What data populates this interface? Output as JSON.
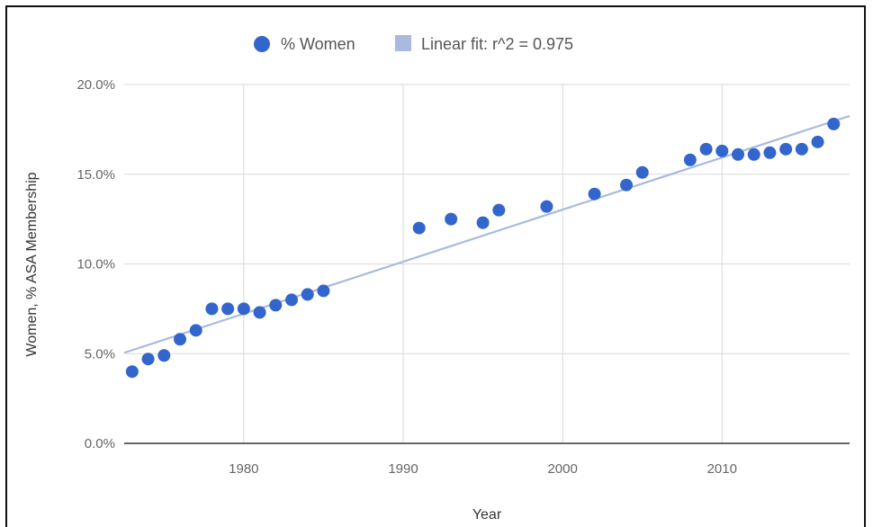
{
  "chart_data": {
    "type": "scatter",
    "title": "",
    "xlabel": "Year",
    "ylabel": "Women, % ASA Membership",
    "xlim": [
      1972.5,
      2018
    ],
    "ylim": [
      0,
      20
    ],
    "x_ticks": [
      1980,
      1990,
      2000,
      2010
    ],
    "x_tick_labels": [
      "1980",
      "1990",
      "2000",
      "2010"
    ],
    "y_ticks": [
      0,
      5,
      10,
      15,
      20
    ],
    "y_tick_labels": [
      "0.0%",
      "5.0%",
      "10.0%",
      "15.0%",
      "20.0%"
    ],
    "grid": true,
    "legend_position": "top",
    "series": [
      {
        "name": "% Women",
        "type": "scatter",
        "color": "#3366cc",
        "x": [
          1973,
          1974,
          1975,
          1976,
          1977,
          1978,
          1979,
          1980,
          1981,
          1982,
          1983,
          1984,
          1985,
          1991,
          1993,
          1995,
          1996,
          1999,
          2002,
          2004,
          2005,
          2008,
          2009,
          2010,
          2011,
          2012,
          2013,
          2014,
          2015,
          2016,
          2017
        ],
        "y": [
          4.0,
          4.7,
          4.9,
          5.8,
          6.3,
          7.5,
          7.5,
          7.5,
          7.3,
          7.7,
          8.0,
          8.3,
          8.5,
          12.0,
          12.5,
          12.3,
          13.0,
          13.2,
          13.9,
          14.4,
          15.1,
          15.8,
          16.4,
          16.3,
          16.1,
          16.1,
          16.2,
          16.4,
          16.4,
          16.8,
          17.8
        ]
      },
      {
        "name": "Linear fit: r^2 = 0.975",
        "type": "line",
        "color": "#aab9df",
        "x": [
          1972.5,
          2018
        ],
        "y": [
          5.05,
          18.25
        ]
      }
    ]
  }
}
